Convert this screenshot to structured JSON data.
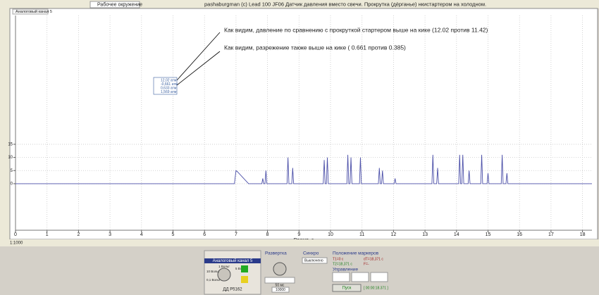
{
  "window": {
    "title": "pashaburgman (c) Lead 100 JF06 Датчик давления вместо свечи. Прокрутка (дёрганье) нкистартером на холодном.",
    "workspace": "Рабочее окружение",
    "tab": "Аналоговый канал 5",
    "zoom": "1:1000"
  },
  "annotations": [
    "Как видим, давление по сравнению с прокруткой стартером выше на кике (12.02 против 11.42)",
    "Как видим, разрежение также выше на кике ( 0.661 против 0.385)"
  ],
  "marker_box": [
    "12,02 атм",
    "-0,661 атм",
    "0,633 атм",
    "1,569 атм"
  ],
  "chart_data": {
    "type": "line",
    "xlabel": "Время, с",
    "xlim": [
      0,
      18.3
    ],
    "xticks": [
      0,
      1,
      2,
      3,
      4,
      5,
      6,
      7,
      8,
      9,
      10,
      11,
      12,
      13,
      14,
      15,
      16,
      17,
      18
    ],
    "ylim": [
      -17.7,
      64
    ],
    "yticks": [
      0,
      5,
      10,
      15
    ],
    "grid": true,
    "series": [
      {
        "name": "Аналоговый канал 5",
        "color": "#4b4fa8",
        "x": [
          0,
          6.95,
          7.0,
          7.05,
          7.4,
          7.82,
          7.85,
          7.88,
          7.92,
          7.95,
          7.98,
          8.62,
          8.65,
          8.68,
          8.77,
          8.8,
          8.83,
          9.77,
          9.8,
          9.83,
          9.87,
          9.9,
          9.93,
          10.52,
          10.55,
          10.58,
          10.62,
          10.65,
          10.68,
          10.92,
          10.95,
          10.98,
          11.52,
          11.55,
          11.58,
          11.62,
          11.65,
          11.68,
          12.02,
          12.05,
          12.08,
          13.22,
          13.25,
          13.28,
          13.37,
          13.4,
          13.43,
          14.07,
          14.1,
          14.13,
          14.17,
          14.2,
          14.23,
          14.37,
          14.4,
          14.43,
          14.77,
          14.8,
          14.83,
          14.97,
          15.0,
          15.03,
          15.42,
          15.45,
          15.48,
          15.57,
          15.6,
          15.63,
          18.3
        ],
        "values": [
          0,
          0,
          5,
          4.5,
          0,
          0,
          2,
          0,
          0,
          5,
          0,
          0,
          10,
          0,
          0,
          6,
          0,
          0,
          9,
          0,
          0,
          10,
          0,
          0,
          11,
          0,
          0,
          10,
          0,
          0,
          10,
          0,
          0,
          6,
          0,
          0,
          5,
          0,
          0,
          2,
          0,
          0,
          11,
          0,
          0,
          6,
          0,
          0,
          11,
          0,
          0,
          11,
          0,
          0,
          5,
          0,
          0,
          11,
          0,
          0,
          4,
          0,
          0,
          11,
          0,
          0,
          4,
          0,
          0
        ]
      }
    ]
  },
  "panel": {
    "channel": {
      "title": "Аналоговый канал 5",
      "knob": [
        "1 Вольт",
        "5 Вольт",
        "0,1 Вольт",
        "10 Вольт"
      ],
      "sensor": "ДД P5162"
    },
    "sweep": {
      "title": "Развертка",
      "time": "50 мс",
      "points": "10000"
    },
    "sync": {
      "title": "Синхро",
      "mode": "Выключено"
    },
    "markers": {
      "title": "Положение маркеров",
      "t1": "T1=0 c",
      "t2": "T2=18,371 c",
      "dt": "dT=18,371 c",
      "f": "F=-"
    },
    "control": {
      "title": "Управление",
      "start": "Пуск",
      "elapsed": "[ 00:00:18.371 ]"
    }
  }
}
